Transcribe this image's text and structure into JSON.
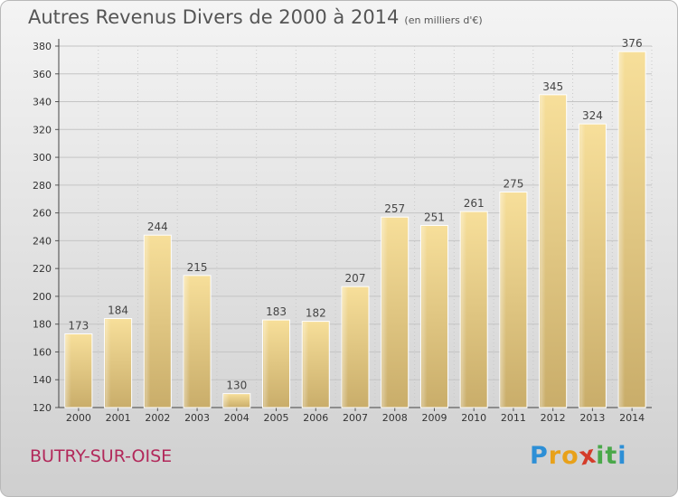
{
  "title": "Autres Revenus Divers de 2000 à 2014",
  "subtitle": "(en milliers d'€)",
  "commune": "BUTRY-SUR-OISE",
  "logo": {
    "text": "ProXiti",
    "letters": [
      "P",
      "r",
      "o",
      "x",
      "i",
      "t",
      "i"
    ],
    "colors": [
      "#2d8fd6",
      "#e8a11a",
      "#e8a11a",
      "#d43c2a",
      "#4aa84a",
      "#4aa84a",
      "#2d8fd6"
    ]
  },
  "chart_data": {
    "type": "bar",
    "categories": [
      "2000",
      "2001",
      "2002",
      "2003",
      "2004",
      "2005",
      "2006",
      "2007",
      "2008",
      "2009",
      "2010",
      "2011",
      "2012",
      "2013",
      "2014"
    ],
    "values": [
      173,
      184,
      244,
      215,
      130,
      183,
      182,
      207,
      257,
      251,
      261,
      275,
      345,
      324,
      376
    ],
    "ylim": [
      120,
      380
    ],
    "yticks": [
      120,
      140,
      160,
      180,
      200,
      220,
      240,
      260,
      280,
      300,
      320,
      340,
      360,
      380
    ],
    "grid": true,
    "bar_color": "#e8c87a"
  }
}
